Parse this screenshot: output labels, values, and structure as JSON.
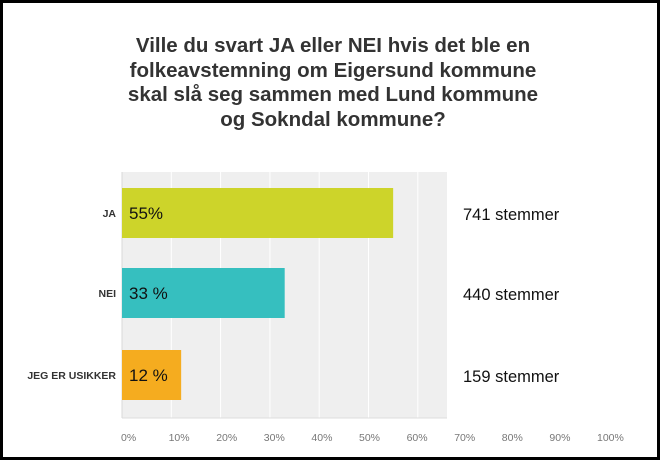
{
  "chart_data": {
    "type": "bar",
    "orientation": "horizontal",
    "title_lines": [
      "Ville du svart JA eller NEI hvis det ble en",
      "folkeavstemning om Eigersund kommune",
      "skal slå seg sammen med Lund kommune",
      "og Sokndal kommune?"
    ],
    "categories": [
      "JA",
      "NEI",
      "JEG ER USIKKER"
    ],
    "values": [
      55,
      33,
      12
    ],
    "data_labels": [
      "55%",
      "33 %",
      "12 %"
    ],
    "votes": [
      "741 stemmer",
      "440 stemmer",
      "159 stemmer"
    ],
    "colors": [
      "#cdd42a",
      "#36bfbf",
      "#f5ac1f"
    ],
    "plot_background": "#efefef",
    "xlim": [
      0,
      100
    ],
    "x_ticks": [
      "0%",
      "10%",
      "20%",
      "30%",
      "40%",
      "50%",
      "60%",
      "70%",
      "80%",
      "90%",
      "100%"
    ],
    "grid": true
  }
}
